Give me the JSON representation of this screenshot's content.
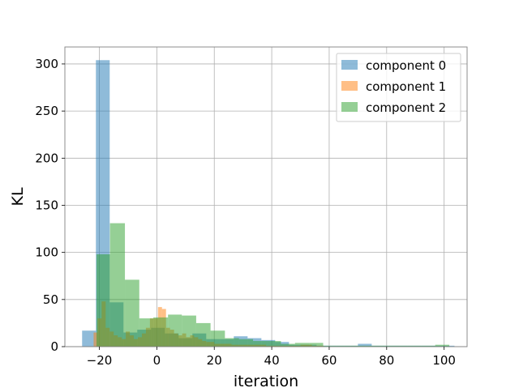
{
  "chart_data": {
    "type": "histogram",
    "title": "",
    "xlabel": "iteration",
    "ylabel": "KL",
    "xlim": [
      -32,
      108
    ],
    "ylim": [
      0,
      318
    ],
    "xticks": [
      -20,
      0,
      20,
      40,
      60,
      80,
      100
    ],
    "xtick_labels": [
      "−20",
      "0",
      "20",
      "40",
      "60",
      "80",
      "100"
    ],
    "yticks": [
      0,
      50,
      100,
      150,
      200,
      250,
      300
    ],
    "ytick_labels": [
      "0",
      "50",
      "100",
      "150",
      "200",
      "250",
      "300"
    ],
    "grid": true,
    "legend_position": "top-right",
    "series": [
      {
        "name": "component 0",
        "color": "#1f77b4",
        "bins": [
          [
            -26,
            -21.2,
            17
          ],
          [
            -21.2,
            -16.4,
            304
          ],
          [
            -16.4,
            -11.6,
            47
          ],
          [
            -11.6,
            -6.8,
            15
          ],
          [
            -6.8,
            -2.0,
            18
          ],
          [
            -2.0,
            2.8,
            20
          ],
          [
            2.8,
            7.6,
            14
          ],
          [
            7.6,
            12.4,
            9
          ],
          [
            12.4,
            17.2,
            14
          ],
          [
            17.2,
            22.0,
            8
          ],
          [
            22.0,
            26.8,
            8
          ],
          [
            26.8,
            31.6,
            11
          ],
          [
            31.6,
            36.4,
            9
          ],
          [
            36.4,
            41.2,
            7
          ],
          [
            41.2,
            46.0,
            5
          ],
          [
            46.0,
            50.8,
            2
          ],
          [
            50.8,
            55.6,
            2
          ],
          [
            55.6,
            60.4,
            1
          ],
          [
            60.4,
            65.2,
            1
          ],
          [
            65.2,
            70.0,
            1
          ],
          [
            70.0,
            74.8,
            3
          ],
          [
            74.8,
            79.6,
            1
          ],
          [
            79.6,
            84.4,
            1
          ],
          [
            84.4,
            89.2,
            1
          ],
          [
            89.2,
            94.0,
            1
          ],
          [
            94.0,
            98.8,
            1
          ],
          [
            98.8,
            103.6,
            1
          ]
        ]
      },
      {
        "name": "component 1",
        "color": "#ff7f0e",
        "bins": [
          [
            -22,
            -20.6,
            15
          ],
          [
            -20.6,
            -19.2,
            30
          ],
          [
            -19.2,
            -17.8,
            48
          ],
          [
            -17.8,
            -16.4,
            20
          ],
          [
            -16.4,
            -15.0,
            16
          ],
          [
            -15.0,
            -13.6,
            12
          ],
          [
            -13.6,
            -12.2,
            10
          ],
          [
            -12.2,
            -10.8,
            8
          ],
          [
            -10.8,
            -9.4,
            16
          ],
          [
            -9.4,
            -8.0,
            12
          ],
          [
            -8.0,
            -6.6,
            8
          ],
          [
            -6.6,
            -5.2,
            10
          ],
          [
            -5.2,
            -3.8,
            14
          ],
          [
            -3.8,
            -2.4,
            20
          ],
          [
            -2.4,
            -1.0,
            30
          ],
          [
            -1.0,
            0.4,
            30
          ],
          [
            0.4,
            1.8,
            42
          ],
          [
            1.8,
            3.2,
            40
          ],
          [
            3.2,
            4.6,
            20
          ],
          [
            4.6,
            6.0,
            18
          ],
          [
            6.0,
            7.4,
            14
          ],
          [
            7.4,
            8.8,
            12
          ],
          [
            8.8,
            10.2,
            14
          ],
          [
            10.2,
            11.6,
            10
          ],
          [
            11.6,
            13.0,
            12
          ],
          [
            13.0,
            14.4,
            10
          ],
          [
            14.4,
            15.8,
            8
          ],
          [
            15.8,
            17.2,
            6
          ],
          [
            17.2,
            18.6,
            5
          ],
          [
            18.6,
            20.0,
            5
          ],
          [
            20.0,
            23.0,
            3
          ],
          [
            23.0,
            26.0,
            3
          ],
          [
            26.0,
            30.0,
            2
          ],
          [
            30.0,
            34.0,
            2
          ],
          [
            34.0,
            38.0,
            2
          ],
          [
            38.0,
            42.0,
            1
          ],
          [
            42.0,
            46.0,
            1
          ],
          [
            46.0,
            50.0,
            1
          ],
          [
            50.0,
            54.0,
            2
          ],
          [
            54.0,
            58.0,
            1
          ]
        ]
      },
      {
        "name": "component 2",
        "color": "#2ca02c",
        "bins": [
          [
            -21,
            -16.3,
            98
          ],
          [
            -16.3,
            -11.1,
            131
          ],
          [
            -11.1,
            -6.1,
            71
          ],
          [
            -6.1,
            -1.2,
            30
          ],
          [
            -1.2,
            3.9,
            31
          ],
          [
            3.9,
            8.7,
            34
          ],
          [
            8.7,
            13.7,
            33
          ],
          [
            13.7,
            18.7,
            25
          ],
          [
            18.7,
            23.7,
            17
          ],
          [
            23.7,
            28.6,
            9
          ],
          [
            28.6,
            33.5,
            8
          ],
          [
            33.5,
            38.4,
            6
          ],
          [
            38.4,
            43.2,
            6
          ],
          [
            43.2,
            48.1,
            3
          ],
          [
            48.1,
            53.0,
            4
          ],
          [
            53.0,
            57.9,
            4
          ],
          [
            57.9,
            62.8,
            1
          ],
          [
            62.8,
            67.6,
            1
          ],
          [
            67.6,
            72.5,
            1
          ],
          [
            72.5,
            77.4,
            1
          ],
          [
            77.4,
            82.3,
            1
          ],
          [
            82.3,
            87.2,
            1
          ],
          [
            87.2,
            92.0,
            1
          ],
          [
            92.0,
            96.9,
            1
          ],
          [
            96.9,
            101.8,
            2
          ]
        ]
      }
    ]
  }
}
